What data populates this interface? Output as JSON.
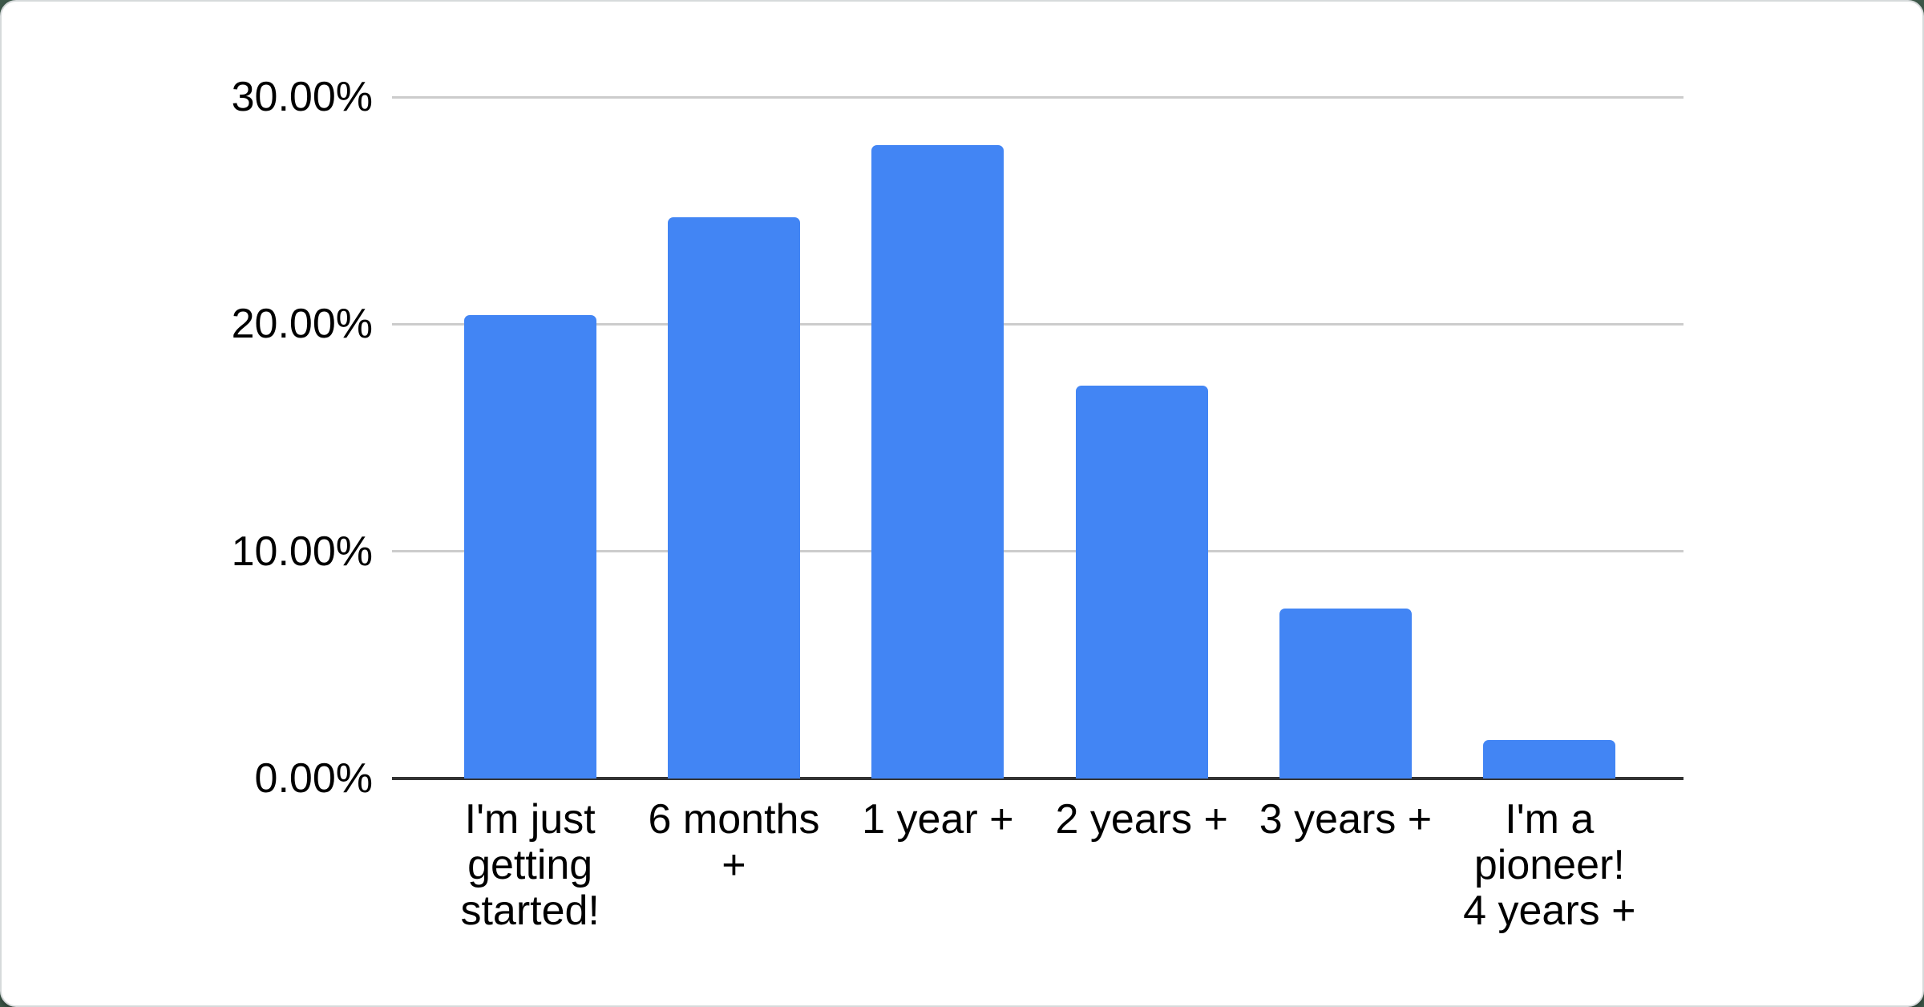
{
  "page": {
    "background_color": "#3d5849",
    "card_color": "#ffffff",
    "card_border_color": "#d6dadb"
  },
  "chart_data": {
    "type": "bar",
    "categories": [
      "I'm just getting started!",
      "6 months +",
      "1 year +",
      "2 years +",
      "3 years +",
      "I'm a pioneer! 4 years +"
    ],
    "category_label_lines": [
      "I'm just\ngetting\nstarted!",
      "6 months\n+",
      "1 year +",
      "2 years +",
      "3 years +",
      "I'm a\npioneer!\n4 years +"
    ],
    "values": [
      20.4,
      24.7,
      27.9,
      17.3,
      7.5,
      1.7
    ],
    "value_unit": "percent",
    "xlabel": "",
    "ylabel": "",
    "ylim": [
      0,
      30
    ],
    "yticks": [
      {
        "value": 30,
        "label": "30.00%"
      },
      {
        "value": 20,
        "label": "20.00%"
      },
      {
        "value": 10,
        "label": "10.00%"
      },
      {
        "value": 0,
        "label": "0.00%"
      }
    ],
    "grid": true,
    "legend_position": "none",
    "bar_color": "#4285f4",
    "axis_line_color": "#333333",
    "gridline_color": "#cccccc",
    "label_text_color": "#000000"
  }
}
